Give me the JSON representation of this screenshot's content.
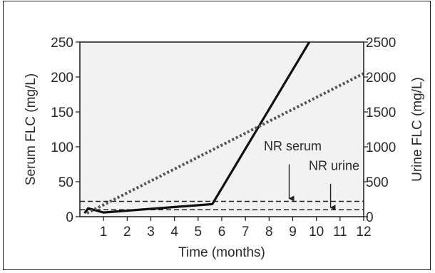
{
  "chart_data": {
    "type": "line",
    "title": "",
    "xlabel": "Time (months)",
    "ylabel_left": "Serum FLC (mg/L)",
    "ylabel_right": "Urine FLC (mg/L)",
    "xlim": [
      0,
      12
    ],
    "ylim_left": [
      0,
      250
    ],
    "ylim_right": [
      0,
      2500
    ],
    "x_ticks": [
      "1",
      "2",
      "3",
      "4",
      "5",
      "6",
      "7",
      "8",
      "9",
      "10",
      "11",
      "12"
    ],
    "y_ticks_left": [
      "0",
      "50",
      "100",
      "150",
      "200",
      "250"
    ],
    "y_ticks_right": [
      "0",
      "500",
      "1000",
      "1500",
      "2000",
      "2500"
    ],
    "grid": false,
    "series": [
      {
        "style": "solid",
        "color": "#111111",
        "axis": "right",
        "x": [
          0.2,
          0.35,
          1.0,
          5.6,
          9.7
        ],
        "y": [
          50,
          120,
          60,
          180,
          2500
        ]
      },
      {
        "style": "dotted",
        "color": "#555555",
        "axis": "left",
        "x": [
          0.3,
          12
        ],
        "y": [
          5,
          205
        ]
      }
    ],
    "reference_lines": [
      {
        "style": "dashed",
        "axis": "left",
        "y": 22,
        "color": "#222222"
      },
      {
        "style": "dashed",
        "axis": "left",
        "y": 10,
        "color": "#222222"
      }
    ],
    "annotations": [
      {
        "text": "NR serum",
        "x_text": 9.0,
        "y_text": 95,
        "arrow_x": 8.85,
        "arrow_from": 75,
        "arrow_to": 24
      },
      {
        "text": "NR urine",
        "x_text": 10.75,
        "y_text": 67,
        "arrow_x": 10.6,
        "arrow_from": 47,
        "arrow_to": 11
      }
    ],
    "plot_background": "#f2f2f2"
  }
}
